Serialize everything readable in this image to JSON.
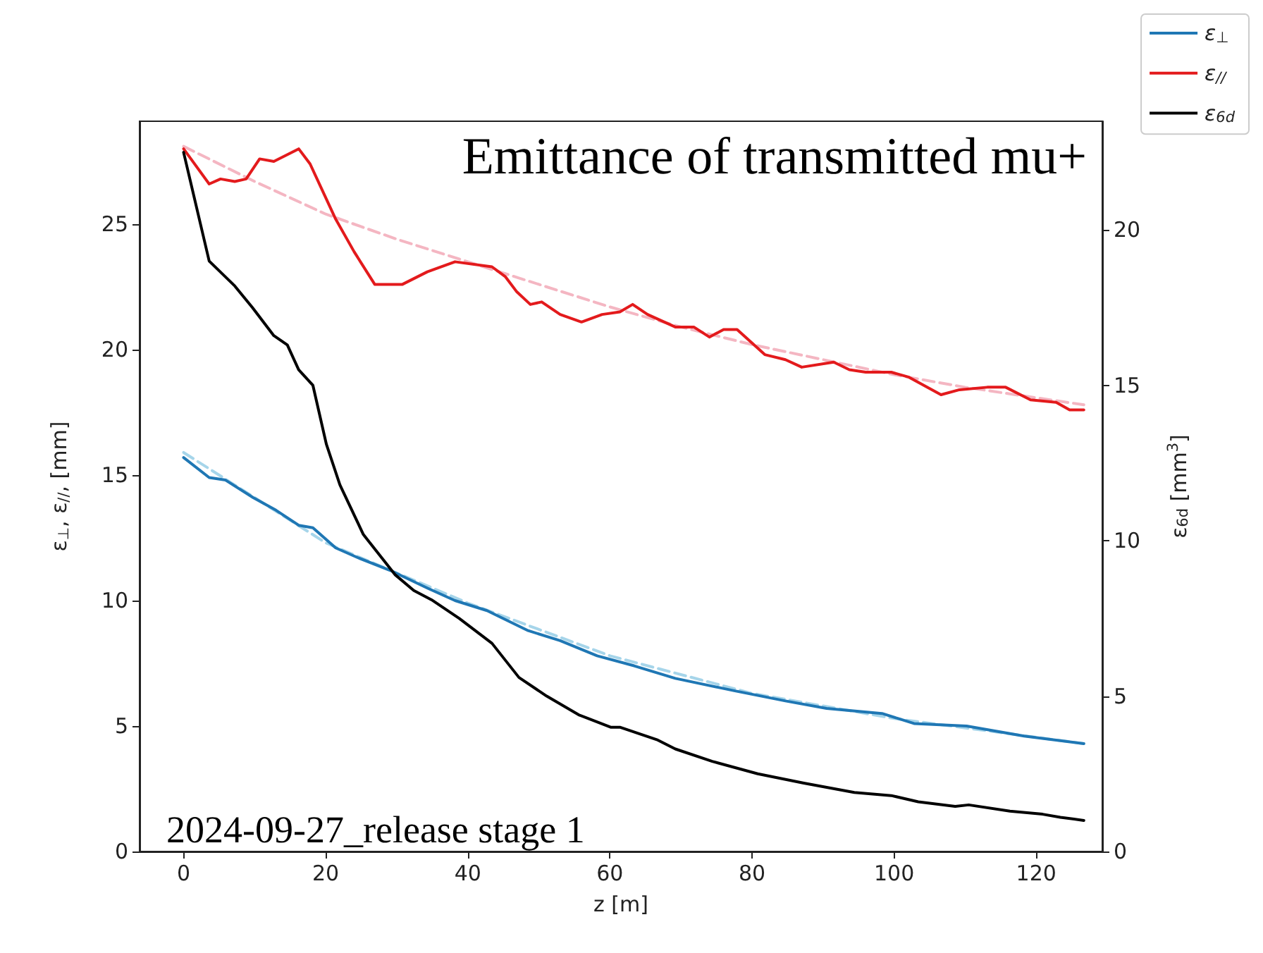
{
  "chart_data": {
    "type": "line",
    "title": "Emittance of transmitted mu+",
    "xlabel": "z [m]",
    "ylabel": "ε$_{⊥}$, ε$_{//}$, [mm]",
    "y2label": "ε$_{6d}$ [mm$^{3}$]",
    "annotations": [
      "2024-09-27_release stage 1"
    ],
    "legend": "top right",
    "xlim": [
      -6.2,
      129.3
    ],
    "xticks": [
      0,
      20,
      40,
      60,
      80,
      100,
      120
    ],
    "ylim": [
      0,
      29.1
    ],
    "yticks": [
      0,
      5,
      10,
      15,
      20,
      25
    ],
    "y2lim": [
      0,
      23.5
    ],
    "y2ticks": [
      0,
      5,
      10,
      15,
      20
    ],
    "series": [
      {
        "name": "ε$_{⊥}$",
        "color": "#1f77b4",
        "x": [
          0,
          3.6,
          5.9,
          9.8,
          13.0,
          16.2,
          18.2,
          21.4,
          24.6,
          29.1,
          34.3,
          38.2,
          42.7,
          48.5,
          53.0,
          58.2,
          63.4,
          69.2,
          77.6,
          84.7,
          90.5,
          98.3,
          102.8,
          110.2,
          118.3,
          126.7
        ],
        "values": [
          15.7,
          14.9,
          14.8,
          14.1,
          13.6,
          13.0,
          12.9,
          12.1,
          11.7,
          11.2,
          10.5,
          10.0,
          9.6,
          8.8,
          8.4,
          7.8,
          7.4,
          6.9,
          6.4,
          6.0,
          5.7,
          5.5,
          5.1,
          5.0,
          4.6,
          4.3
        ]
      },
      {
        "name": "ε$_{//}$",
        "color": "#e31a1c",
        "x": [
          0,
          3.6,
          5.2,
          7.2,
          8.8,
          10.7,
          12.7,
          16.2,
          17.8,
          21.4,
          24.0,
          26.9,
          30.8,
          34.3,
          38.2,
          43.4,
          45.3,
          46.9,
          48.8,
          50.4,
          53.0,
          56.0,
          58.9,
          61.4,
          63.2,
          65.3,
          69.2,
          71.8,
          74.0,
          76.0,
          77.9,
          81.8,
          84.7,
          87.0,
          91.5,
          93.7,
          96.0,
          99.6,
          102.1,
          106.6,
          109.2,
          113.1,
          115.7,
          119.2,
          122.8,
          124.7,
          126.7
        ],
        "values": [
          28.0,
          26.6,
          26.8,
          26.7,
          26.8,
          27.6,
          27.5,
          28.0,
          27.4,
          25.2,
          23.9,
          22.6,
          22.6,
          23.1,
          23.5,
          23.3,
          22.9,
          22.3,
          21.8,
          21.9,
          21.4,
          21.1,
          21.4,
          21.5,
          21.8,
          21.4,
          20.9,
          20.9,
          20.5,
          20.8,
          20.8,
          19.8,
          19.6,
          19.3,
          19.5,
          19.2,
          19.1,
          19.1,
          18.9,
          18.2,
          18.4,
          18.5,
          18.5,
          18.0,
          17.9,
          17.6,
          17.6
        ]
      },
      {
        "name": "ε$_{6d}$",
        "color": "#000000",
        "axis": "y2",
        "x": [
          0,
          3.6,
          7.2,
          9.7,
          12.7,
          14.6,
          16.2,
          18.2,
          20.1,
          22.0,
          25.3,
          29.8,
          32.4,
          34.9,
          38.8,
          43.4,
          47.2,
          51.1,
          55.6,
          60.1,
          61.4,
          66.6,
          69.2,
          74.4,
          80.8,
          87.3,
          94.4,
          99.6,
          103.4,
          108.6,
          110.5,
          116.3,
          120.9,
          123.4,
          126.7
        ],
        "values": [
          22.5,
          19.0,
          18.2,
          17.5,
          16.6,
          16.3,
          15.5,
          15.0,
          13.1,
          11.8,
          10.2,
          8.9,
          8.4,
          8.1,
          7.5,
          6.7,
          5.6,
          5.0,
          4.4,
          4.0,
          4.0,
          3.6,
          3.3,
          2.9,
          2.5,
          2.2,
          1.9,
          1.8,
          1.6,
          1.45,
          1.5,
          1.3,
          1.2,
          1.1,
          1.0
        ]
      },
      {
        "type": "line",
        "color": "#f4b6c2",
        "line_style": "dashed",
        "x": [
          0,
          10,
          20,
          30,
          40,
          50,
          60,
          70,
          80,
          90,
          100,
          110,
          126.7
        ],
        "values": [
          28.1,
          26.7,
          25.4,
          24.4,
          23.5,
          22.6,
          21.7,
          20.9,
          20.2,
          19.6,
          19.0,
          18.5,
          17.8
        ]
      },
      {
        "type": "line",
        "color": "#a6d5ea",
        "line_style": "dashed",
        "x": [
          0,
          20,
          40,
          60,
          80,
          100,
          126.7
        ],
        "values": [
          15.9,
          12.3,
          9.9,
          7.8,
          6.3,
          5.3,
          4.3
        ]
      }
    ]
  }
}
